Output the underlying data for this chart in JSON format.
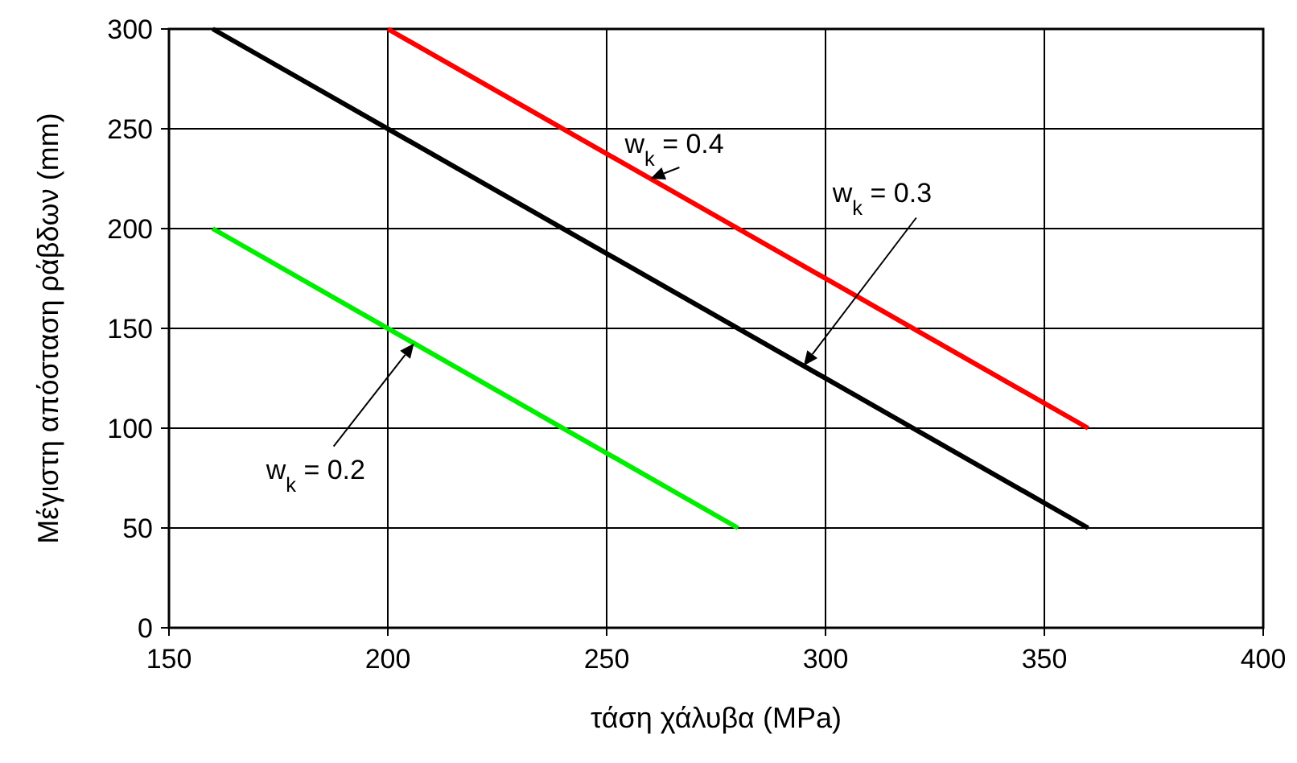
{
  "chart_data": {
    "type": "line",
    "xlabel": "τάση χάλυβα (MPa)",
    "ylabel": "Μέγιστη απόσταση ράβδων (mm)",
    "xlim": [
      150,
      400
    ],
    "ylim": [
      0,
      300
    ],
    "xticks": [
      150,
      200,
      250,
      300,
      350,
      400
    ],
    "yticks": [
      0,
      50,
      100,
      150,
      200,
      250,
      300
    ],
    "grid": true,
    "marker": "none",
    "line_style": "solid",
    "series": [
      {
        "color": "#ff0000",
        "x": [
          200,
          360
        ],
        "values": [
          300,
          100
        ]
      },
      {
        "color": "#000000",
        "x": [
          160,
          360
        ],
        "values": [
          300,
          50
        ]
      },
      {
        "color": "#00ee00",
        "x": [
          160,
          280
        ],
        "values": [
          200,
          50
        ]
      }
    ],
    "annotations": [
      {
        "text": "w$_{k}$ = 0.4",
        "x": 260,
        "y": 225
      },
      {
        "text": "w$_{k}$ = 0.3",
        "x": 295,
        "y": 131.25
      },
      {
        "text": "w$_{k}$ = 0.2",
        "x": 206,
        "y": 142.5
      }
    ]
  }
}
